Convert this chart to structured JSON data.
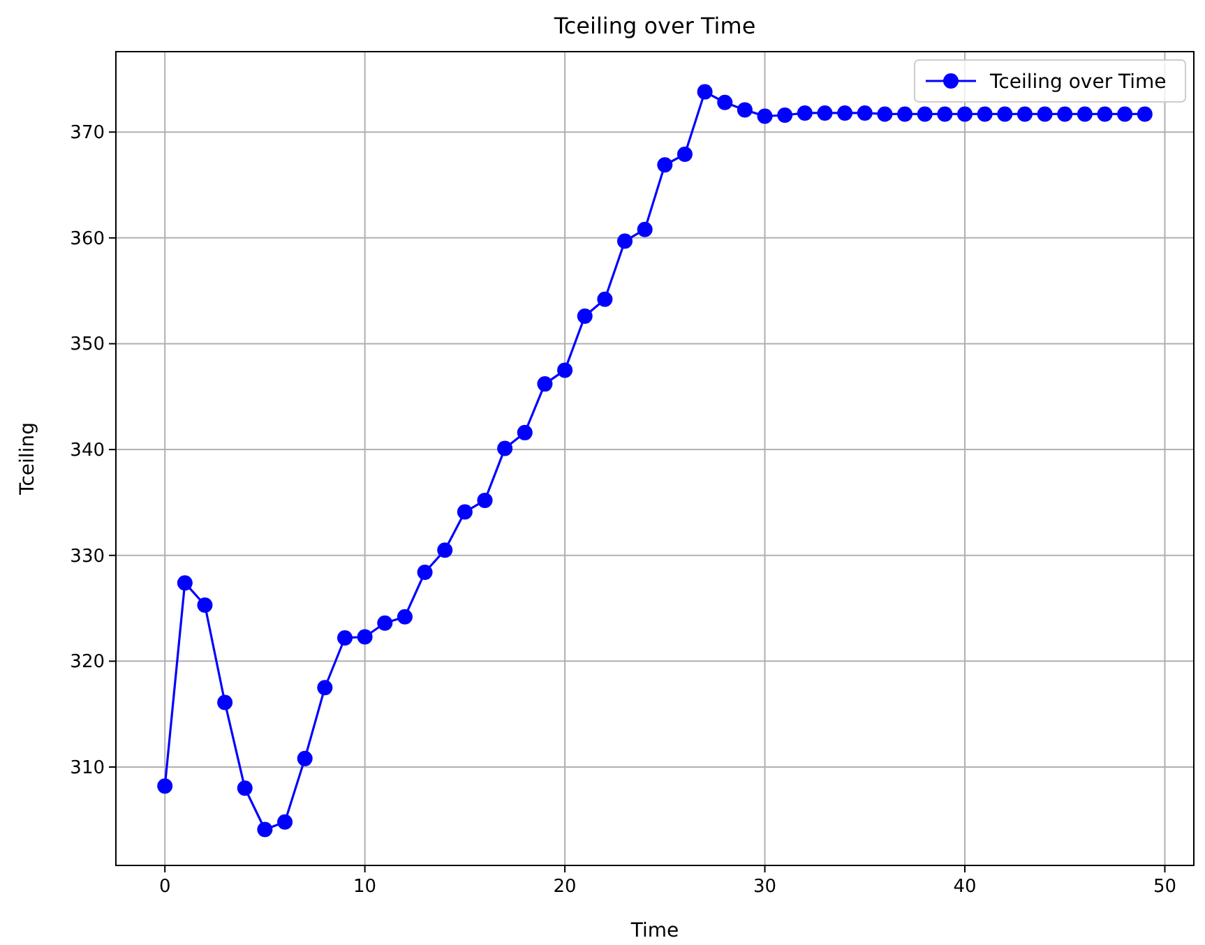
{
  "chart_data": {
    "type": "line",
    "title": "Tceiling over Time",
    "xlabel": "Time",
    "ylabel": "Tceiling",
    "x": [
      0,
      1,
      2,
      3,
      4,
      5,
      6,
      7,
      8,
      9,
      10,
      11,
      12,
      13,
      14,
      15,
      16,
      17,
      18,
      19,
      20,
      21,
      22,
      23,
      24,
      25,
      26,
      27,
      28,
      29,
      30,
      31,
      32,
      33,
      34,
      35,
      36,
      37,
      38,
      39,
      40,
      41,
      42,
      43,
      44,
      45,
      46,
      47,
      48,
      49
    ],
    "series": [
      {
        "name": "Tceiling over Time",
        "color": "#0000ff",
        "values": [
          308.2,
          327.4,
          325.3,
          316.1,
          308.0,
          304.1,
          304.8,
          310.8,
          317.5,
          322.2,
          322.3,
          323.6,
          324.2,
          328.4,
          330.5,
          334.1,
          335.2,
          340.1,
          341.6,
          346.2,
          347.5,
          352.6,
          354.2,
          359.7,
          360.8,
          366.9,
          367.9,
          373.8,
          372.8,
          372.1,
          371.5,
          371.6,
          371.8,
          371.8,
          371.8,
          371.8,
          371.7,
          371.7,
          371.7,
          371.7,
          371.7,
          371.7,
          371.7,
          371.7,
          371.7,
          371.7,
          371.7,
          371.7,
          371.7,
          371.7
        ]
      }
    ],
    "xlim": [
      -2.45,
      51.45
    ],
    "ylim": [
      300.7,
      377.6
    ],
    "xticks": [
      0,
      10,
      20,
      30,
      40,
      50
    ],
    "yticks": [
      310,
      320,
      330,
      340,
      350,
      360,
      370
    ],
    "grid": true,
    "legend": "top right",
    "marker": "circle",
    "line_style": "solid"
  }
}
